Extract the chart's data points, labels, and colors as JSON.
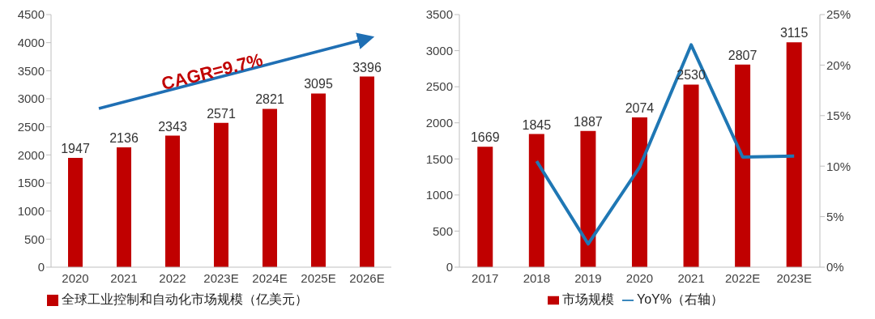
{
  "chart_data": [
    {
      "type": "bar",
      "categories": [
        "2020",
        "2021",
        "2022",
        "2023E",
        "2024E",
        "2025E",
        "2026E"
      ],
      "series": [
        {
          "name": "全球工业控制和自动化市场规模（亿美元）",
          "color": "#c00000",
          "values": [
            1947,
            2136,
            2343,
            2571,
            2821,
            3095,
            3396
          ],
          "value_labels": [
            "1947",
            "2136",
            "2343",
            "2571",
            "2821",
            "3095",
            "3396"
          ]
        }
      ],
      "ylim": [
        0,
        4500
      ],
      "yticks": [
        0,
        500,
        1000,
        1500,
        2000,
        2500,
        3000,
        3500,
        4000,
        4500
      ],
      "legend": "bottom left",
      "annotations": [
        "CAGR=9.7%"
      ]
    },
    {
      "type": "bar",
      "categories": [
        "2017",
        "2018",
        "2019",
        "2020",
        "2021",
        "2022E",
        "2023E"
      ],
      "series": [
        {
          "name": "市场规模",
          "color": "#c00000",
          "values": [
            1669,
            1845,
            1887,
            2074,
            2530,
            2807,
            3115
          ],
          "value_labels": [
            "1669",
            "1845",
            "1887",
            "2074",
            "2530",
            "2807",
            "3115"
          ]
        },
        {
          "name": "YoY%（右轴）",
          "type": "line",
          "axis": "y2",
          "color": "#1f77b4",
          "values": [
            null,
            10.5,
            2.3,
            9.9,
            22.0,
            10.9,
            11.0
          ]
        }
      ],
      "ylim": [
        0,
        3500
      ],
      "yticks": [
        0,
        500,
        1000,
        1500,
        2000,
        2500,
        3000,
        3500
      ],
      "y2lim": [
        0,
        25
      ],
      "y2ticks": [
        {
          "value": 0,
          "label": "0%"
        },
        {
          "value": 5,
          "label": "5%"
        },
        {
          "value": 10,
          "label": "10%"
        },
        {
          "value": 15,
          "label": "15%"
        },
        {
          "value": 20,
          "label": "20%"
        },
        {
          "value": 25,
          "label": "25%"
        }
      ],
      "legend": "bottom",
      "marker": "none"
    }
  ]
}
